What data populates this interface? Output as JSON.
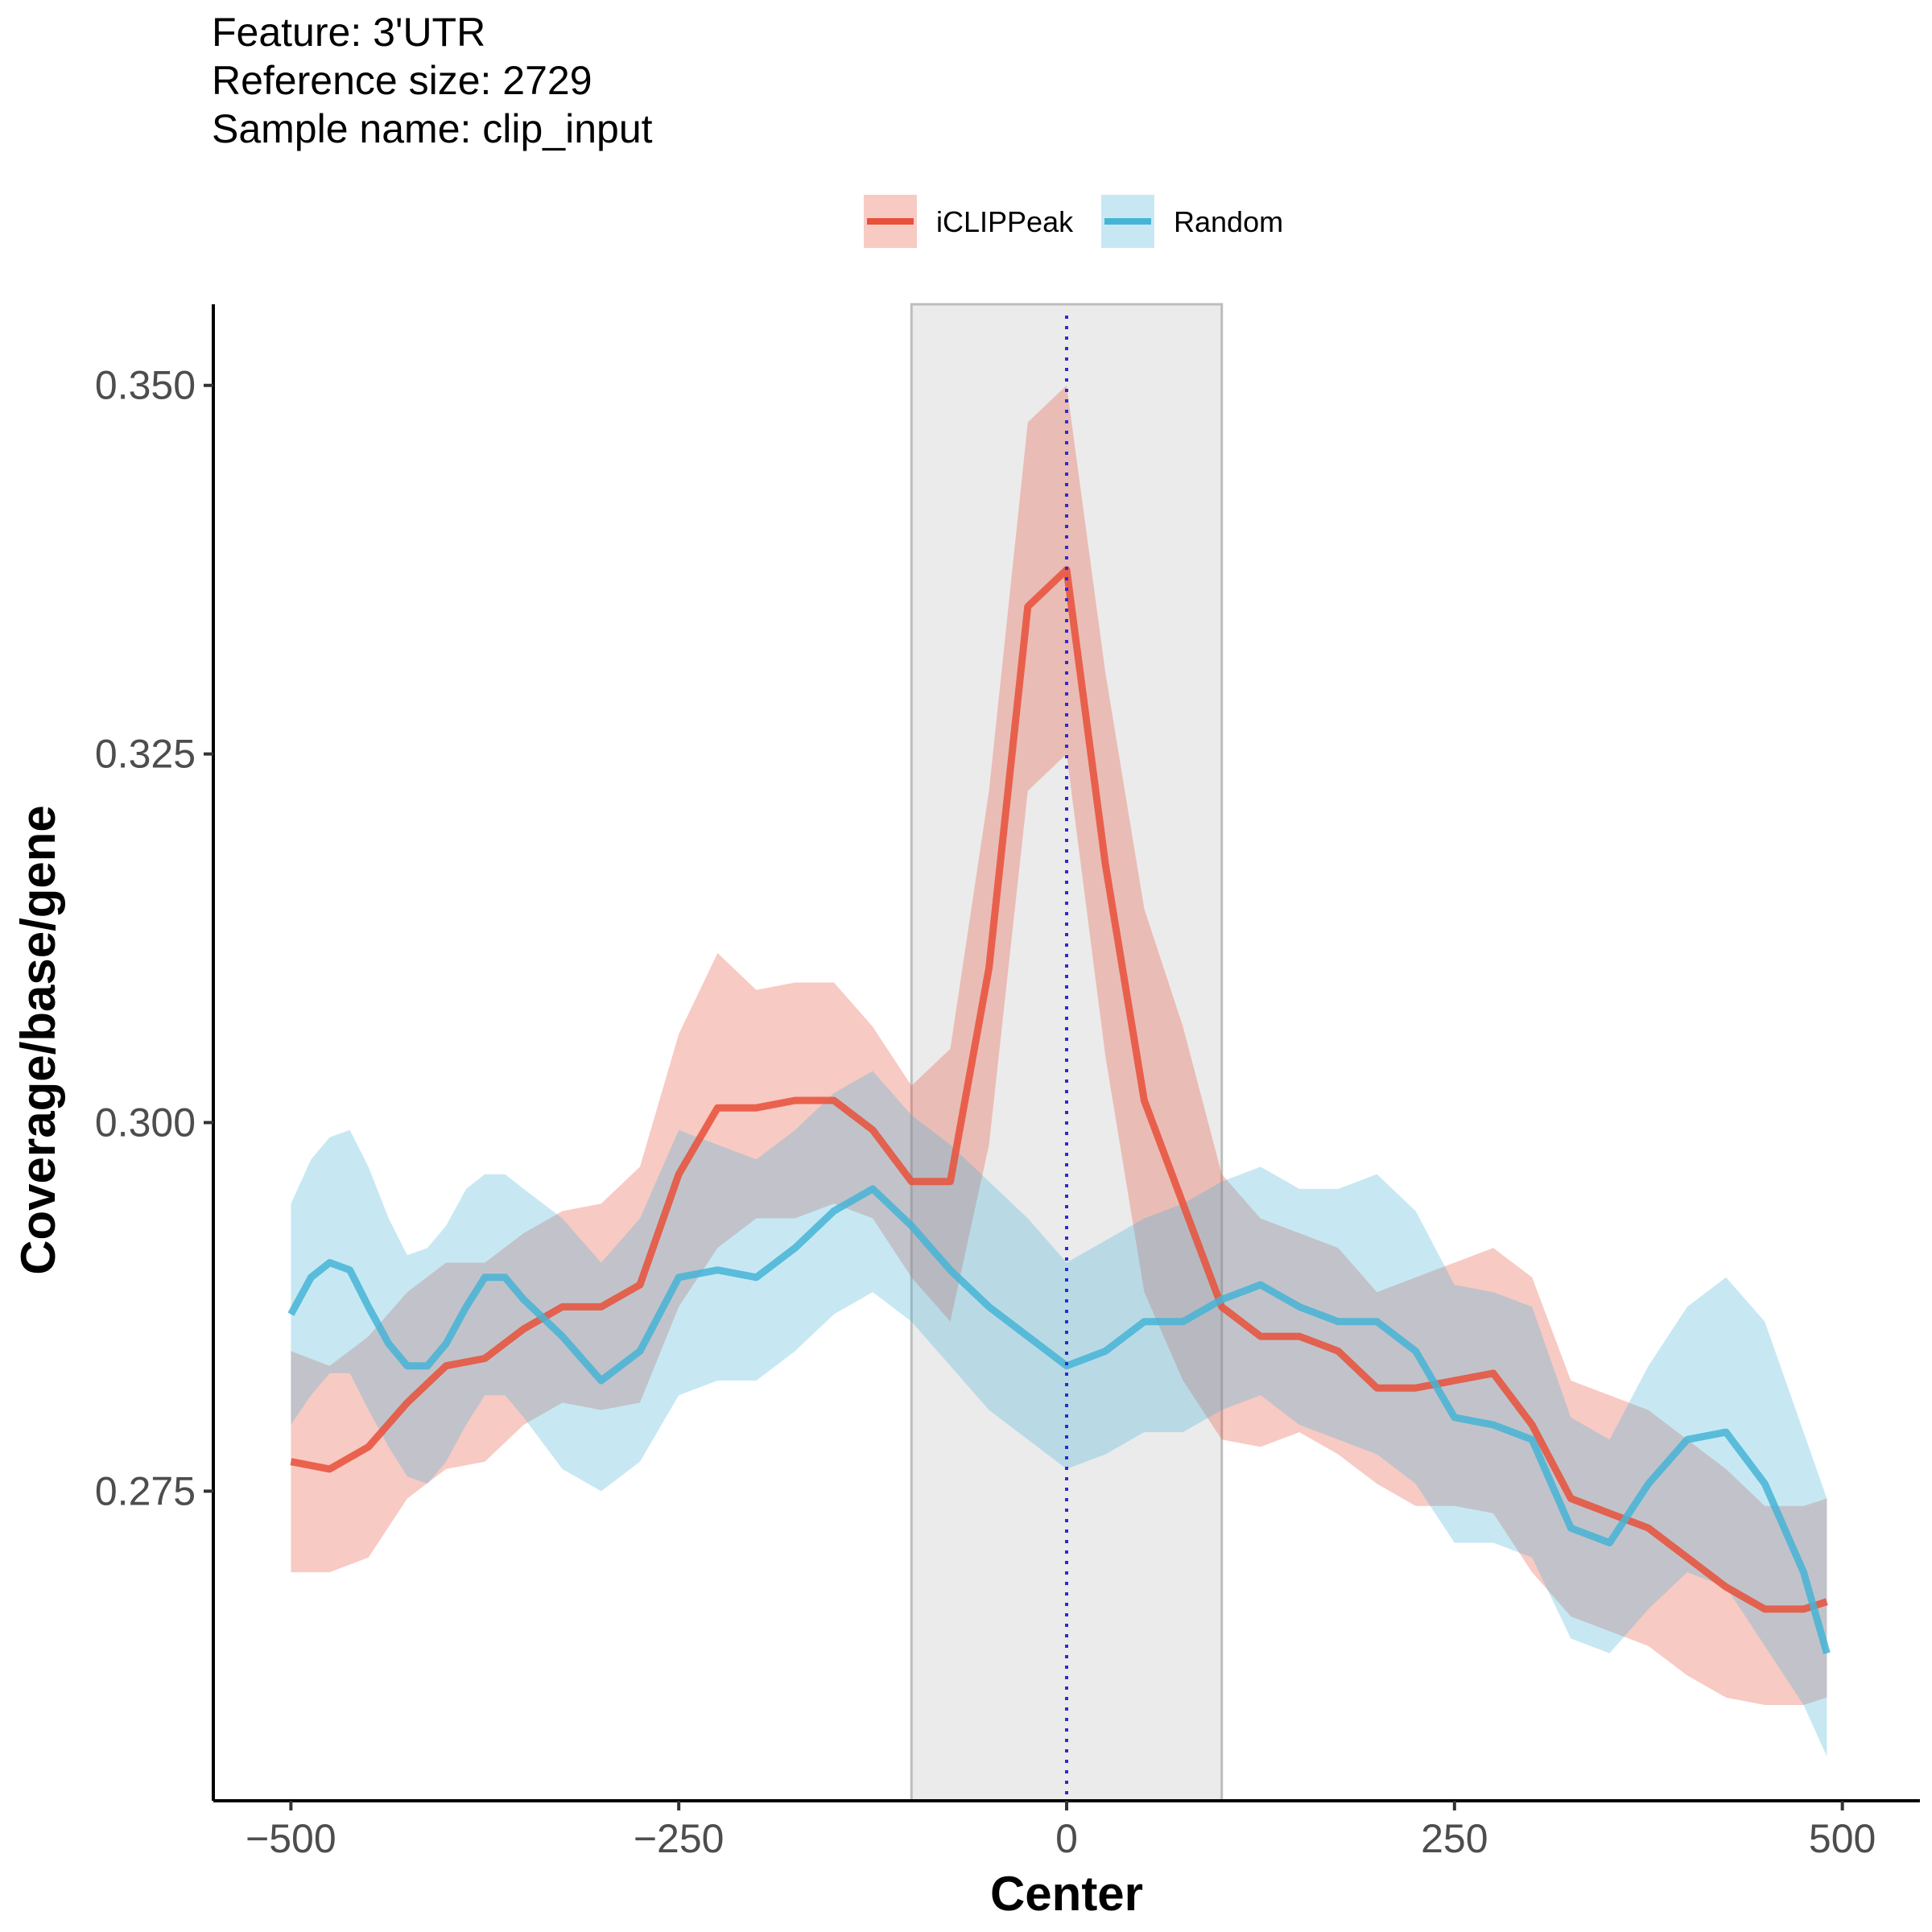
{
  "header": {
    "feature": "Feature: 3'UTR",
    "reference": "Reference size: 2729",
    "sample": "Sample name: clip_input"
  },
  "chart_data": {
    "type": "line",
    "xlabel": "Center",
    "ylabel": "Coverage/base/gene",
    "xlim": [
      -550,
      550
    ],
    "ylim": [
      0.254,
      0.3555
    ],
    "x_ticks": [
      -500,
      -250,
      0,
      250,
      500
    ],
    "x_tick_labels": [
      "−500",
      "−250",
      "0",
      "250",
      "500"
    ],
    "y_ticks": [
      0.275,
      0.3,
      0.325,
      0.35
    ],
    "y_tick_labels": [
      "0.275",
      "0.300",
      "0.325",
      "0.350"
    ],
    "grid": false,
    "legend_position": "top",
    "highlight_region": [
      -100,
      100
    ],
    "vline": 0,
    "colors": {
      "iclip": "#e8503a",
      "random": "#45b4d6",
      "vline": "#2b2bd4",
      "region_fill": "#ebebeb",
      "region_stroke": "#bdbdbd"
    },
    "series": [
      {
        "name": "iCLIPPeak",
        "x": [
          -500,
          -475,
          -450,
          -425,
          -400,
          -375,
          -350,
          -325,
          -300,
          -275,
          -250,
          -225,
          -200,
          -175,
          -150,
          -125,
          -100,
          -75,
          -50,
          -25,
          0,
          25,
          50,
          75,
          100,
          125,
          150,
          175,
          200,
          225,
          250,
          275,
          300,
          325,
          350,
          375,
          400,
          425,
          450,
          475,
          490
        ],
        "values": [
          0.277,
          0.2765,
          0.278,
          0.281,
          0.2835,
          0.284,
          0.286,
          0.2875,
          0.2875,
          0.289,
          0.2965,
          0.301,
          0.301,
          0.3015,
          0.3015,
          0.2995,
          0.296,
          0.296,
          0.3105,
          0.335,
          0.3375,
          0.3175,
          0.3015,
          0.2945,
          0.2875,
          0.2855,
          0.2855,
          0.2845,
          0.282,
          0.282,
          0.2825,
          0.283,
          0.2795,
          0.2745,
          0.2735,
          0.2725,
          0.2705,
          0.2685,
          0.267,
          0.267,
          0.2675
        ],
        "lower": [
          0.2695,
          0.2695,
          0.2705,
          0.2745,
          0.2765,
          0.277,
          0.2795,
          0.281,
          0.2805,
          0.281,
          0.2875,
          0.2915,
          0.2935,
          0.2935,
          0.2945,
          0.2935,
          0.2895,
          0.2865,
          0.2985,
          0.3225,
          0.325,
          0.3045,
          0.2885,
          0.2825,
          0.2785,
          0.278,
          0.279,
          0.2775,
          0.2755,
          0.274,
          0.274,
          0.2735,
          0.2695,
          0.2665,
          0.2655,
          0.2645,
          0.2625,
          0.261,
          0.2605,
          0.2605,
          0.261
        ],
        "upper": [
          0.2845,
          0.2835,
          0.2855,
          0.2885,
          0.2905,
          0.2905,
          0.2925,
          0.294,
          0.2945,
          0.297,
          0.306,
          0.3115,
          0.309,
          0.3095,
          0.3095,
          0.3065,
          0.3025,
          0.305,
          0.3225,
          0.3475,
          0.35,
          0.3305,
          0.3145,
          0.3065,
          0.2965,
          0.2935,
          0.2925,
          0.2915,
          0.2885,
          0.2895,
          0.2905,
          0.2915,
          0.2895,
          0.2825,
          0.2815,
          0.2805,
          0.2785,
          0.2765,
          0.274,
          0.274,
          0.2745
        ]
      },
      {
        "name": "Random",
        "x": [
          -500,
          -487,
          -475,
          -462,
          -450,
          -437,
          -425,
          -412,
          -400,
          -387,
          -375,
          -362,
          -350,
          -325,
          -300,
          -275,
          -250,
          -225,
          -200,
          -175,
          -150,
          -125,
          -100,
          -75,
          -50,
          -25,
          0,
          25,
          50,
          75,
          100,
          125,
          150,
          175,
          200,
          225,
          250,
          275,
          300,
          325,
          350,
          375,
          400,
          425,
          450,
          475,
          490
        ],
        "values": [
          0.287,
          0.2895,
          0.2905,
          0.29,
          0.2875,
          0.285,
          0.2835,
          0.2835,
          0.285,
          0.2875,
          0.2895,
          0.2895,
          0.288,
          0.2855,
          0.2825,
          0.2845,
          0.2895,
          0.29,
          0.2895,
          0.2915,
          0.294,
          0.2955,
          0.293,
          0.29,
          0.2875,
          0.2855,
          0.2835,
          0.2845,
          0.2865,
          0.2865,
          0.288,
          0.289,
          0.2875,
          0.2865,
          0.2865,
          0.2845,
          0.28,
          0.2795,
          0.2785,
          0.2725,
          0.2715,
          0.2755,
          0.2785,
          0.279,
          0.2755,
          0.2695,
          0.264
        ],
        "lower": [
          0.2795,
          0.2815,
          0.283,
          0.283,
          0.2805,
          0.278,
          0.276,
          0.2755,
          0.277,
          0.2795,
          0.2815,
          0.2815,
          0.28,
          0.2765,
          0.275,
          0.277,
          0.2815,
          0.2825,
          0.2825,
          0.2845,
          0.287,
          0.2885,
          0.2865,
          0.2835,
          0.2805,
          0.2785,
          0.2765,
          0.2775,
          0.279,
          0.279,
          0.2805,
          0.2815,
          0.2795,
          0.2785,
          0.2775,
          0.2755,
          0.2715,
          0.2715,
          0.2705,
          0.265,
          0.264,
          0.267,
          0.2695,
          0.2685,
          0.2645,
          0.2605,
          0.257
        ],
        "upper": [
          0.2945,
          0.2975,
          0.299,
          0.2995,
          0.297,
          0.2935,
          0.291,
          0.2915,
          0.293,
          0.2955,
          0.2965,
          0.2965,
          0.2955,
          0.2935,
          0.2905,
          0.2935,
          0.2995,
          0.2985,
          0.2975,
          0.2995,
          0.302,
          0.3035,
          0.3005,
          0.2985,
          0.296,
          0.2935,
          0.2905,
          0.292,
          0.2935,
          0.2945,
          0.296,
          0.297,
          0.2955,
          0.2955,
          0.2965,
          0.294,
          0.289,
          0.2885,
          0.2875,
          0.28,
          0.2785,
          0.2835,
          0.2875,
          0.2895,
          0.2865,
          0.279,
          0.2745
        ]
      }
    ]
  }
}
